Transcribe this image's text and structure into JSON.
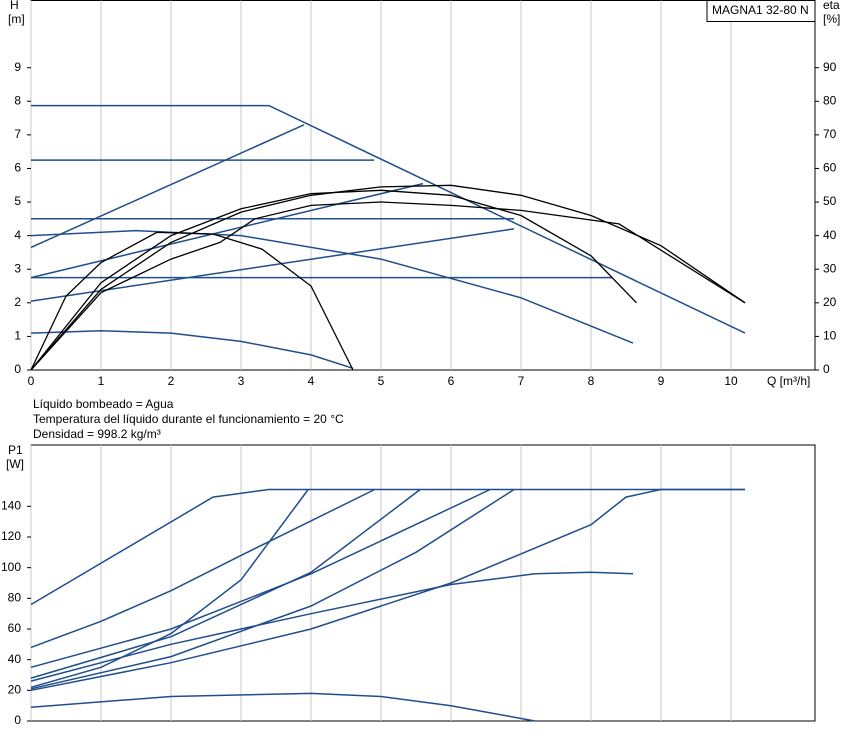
{
  "chart_data": [
    {
      "type": "line",
      "title": "MAGNA1 32-80 N",
      "ylabel_lines": [
        "H",
        "[m]"
      ],
      "y2label_lines": [
        "eta",
        "[%]"
      ],
      "xlabel": "Q [m³/h]",
      "xlim": [
        0,
        11.2
      ],
      "ylim": [
        0,
        11
      ],
      "y2lim": [
        0,
        110
      ],
      "xticks": [
        0,
        1,
        2,
        3,
        4,
        5,
        6,
        7,
        8,
        9,
        10
      ],
      "yticks": [
        0,
        1,
        2,
        3,
        4,
        5,
        6,
        7,
        8,
        9
      ],
      "y2ticks": [
        0,
        10,
        20,
        30,
        40,
        50,
        60,
        70,
        80,
        90
      ],
      "grid": true,
      "notes": [
        "Líquido bombeado = Agua",
        "Temperatura del líquido durante el funcionamiento = 20 °C",
        "Densidad = 998.2 kg/m³"
      ],
      "series": [
        {
          "color": "#1f4e8c",
          "x": [
            0,
            3.4,
            10.2
          ],
          "y": [
            7.87,
            7.87,
            1.1
          ]
        },
        {
          "color": "#1f4e8c",
          "x": [
            0,
            4.9
          ],
          "y": [
            6.25,
            6.25
          ]
        },
        {
          "color": "#1f4e8c",
          "x": [
            0,
            6.9
          ],
          "y": [
            4.5,
            4.5
          ]
        },
        {
          "color": "#1f4e8c",
          "x": [
            0,
            8.3
          ],
          "y": [
            2.75,
            2.75
          ]
        },
        {
          "color": "#1f4e8c",
          "x": [
            0,
            3.9
          ],
          "y": [
            3.65,
            7.3
          ]
        },
        {
          "color": "#1f4e8c",
          "x": [
            0,
            5.6
          ],
          "y": [
            2.75,
            5.55
          ]
        },
        {
          "color": "#1f4e8c",
          "x": [
            0,
            6.9
          ],
          "y": [
            2.05,
            4.2
          ]
        },
        {
          "color": "#1f4e8c",
          "x": [
            0,
            1.5,
            3,
            5,
            7,
            8.6
          ],
          "y": [
            4.0,
            4.15,
            4.0,
            3.3,
            2.15,
            0.8
          ]
        },
        {
          "color": "#1f4e8c",
          "x": [
            0,
            1,
            2,
            3,
            4,
            4.6
          ],
          "y": [
            1.1,
            1.17,
            1.1,
            0.85,
            0.45,
            0.05
          ]
        },
        {
          "color": "#000000",
          "axis": "y2",
          "x": [
            0,
            1,
            2,
            3,
            4,
            5,
            6,
            7,
            8,
            9,
            10.2
          ],
          "y": [
            0,
            24,
            38,
            47,
            52,
            54.5,
            55,
            52,
            46,
            37,
            20
          ]
        },
        {
          "color": "#000000",
          "axis": "y2",
          "x": [
            0,
            1,
            2,
            3,
            4,
            5,
            6,
            7,
            8,
            8.65
          ],
          "y": [
            0,
            26,
            40,
            48,
            52.5,
            53.5,
            52,
            46,
            34,
            20
          ]
        },
        {
          "color": "#000000",
          "axis": "y2",
          "x": [
            0,
            0.5,
            1,
            1.8,
            2.6,
            3.3,
            4,
            4.6
          ],
          "y": [
            0,
            22,
            32,
            41,
            40.5,
            36,
            25,
            0
          ]
        },
        {
          "color": "#000000",
          "axis": "y2",
          "x": [
            0,
            1,
            2,
            2.7,
            3.2,
            4,
            5,
            6,
            7,
            8.4,
            10.2
          ],
          "y": [
            0,
            23,
            33,
            38,
            45,
            49,
            50,
            49,
            47.5,
            43.5,
            20
          ]
        }
      ]
    },
    {
      "type": "line",
      "ylabel_lines": [
        "P1",
        "[W]"
      ],
      "xlim": [
        0,
        11.2
      ],
      "ylim": [
        0,
        180
      ],
      "xticks": [
        0,
        1,
        2,
        3,
        4,
        5,
        6,
        7,
        8,
        9,
        10
      ],
      "yticks": [
        0,
        20,
        40,
        60,
        80,
        100,
        120,
        140
      ],
      "grid": true,
      "series": [
        {
          "color": "#1f4e8c",
          "x": [
            0,
            2.6,
            3.4,
            10.2
          ],
          "y": [
            76,
            146,
            151,
            151
          ]
        },
        {
          "color": "#1f4e8c",
          "x": [
            0,
            1,
            2,
            3,
            3.96
          ],
          "y": [
            22,
            35,
            57,
            92,
            151
          ]
        },
        {
          "color": "#1f4e8c",
          "x": [
            0,
            1,
            2,
            3,
            4.91
          ],
          "y": [
            48,
            65,
            85,
            108,
            151
          ]
        },
        {
          "color": "#1f4e8c",
          "x": [
            0,
            2,
            4,
            5.56
          ],
          "y": [
            28,
            55,
            97,
            151
          ]
        },
        {
          "color": "#1f4e8c",
          "x": [
            0,
            2,
            4,
            6.56
          ],
          "y": [
            35,
            60,
            96,
            151
          ]
        },
        {
          "color": "#1f4e8c",
          "x": [
            0,
            2,
            4,
            5.5,
            6.9
          ],
          "y": [
            21,
            42,
            75,
            110,
            151
          ]
        },
        {
          "color": "#1f4e8c",
          "x": [
            0,
            2,
            4,
            6,
            8,
            8.5,
            9,
            10.2
          ],
          "y": [
            20,
            38,
            60,
            90,
            128,
            146,
            151,
            151
          ]
        },
        {
          "color": "#1f4e8c",
          "x": [
            0,
            2,
            4,
            6,
            7.2,
            8,
            8.6
          ],
          "y": [
            26,
            50,
            70,
            89,
            96,
            97,
            96
          ]
        },
        {
          "color": "#1f4e8c",
          "x": [
            0,
            2,
            4,
            5,
            6,
            7.2
          ],
          "y": [
            9,
            16,
            18,
            16,
            10,
            0
          ]
        }
      ]
    }
  ]
}
